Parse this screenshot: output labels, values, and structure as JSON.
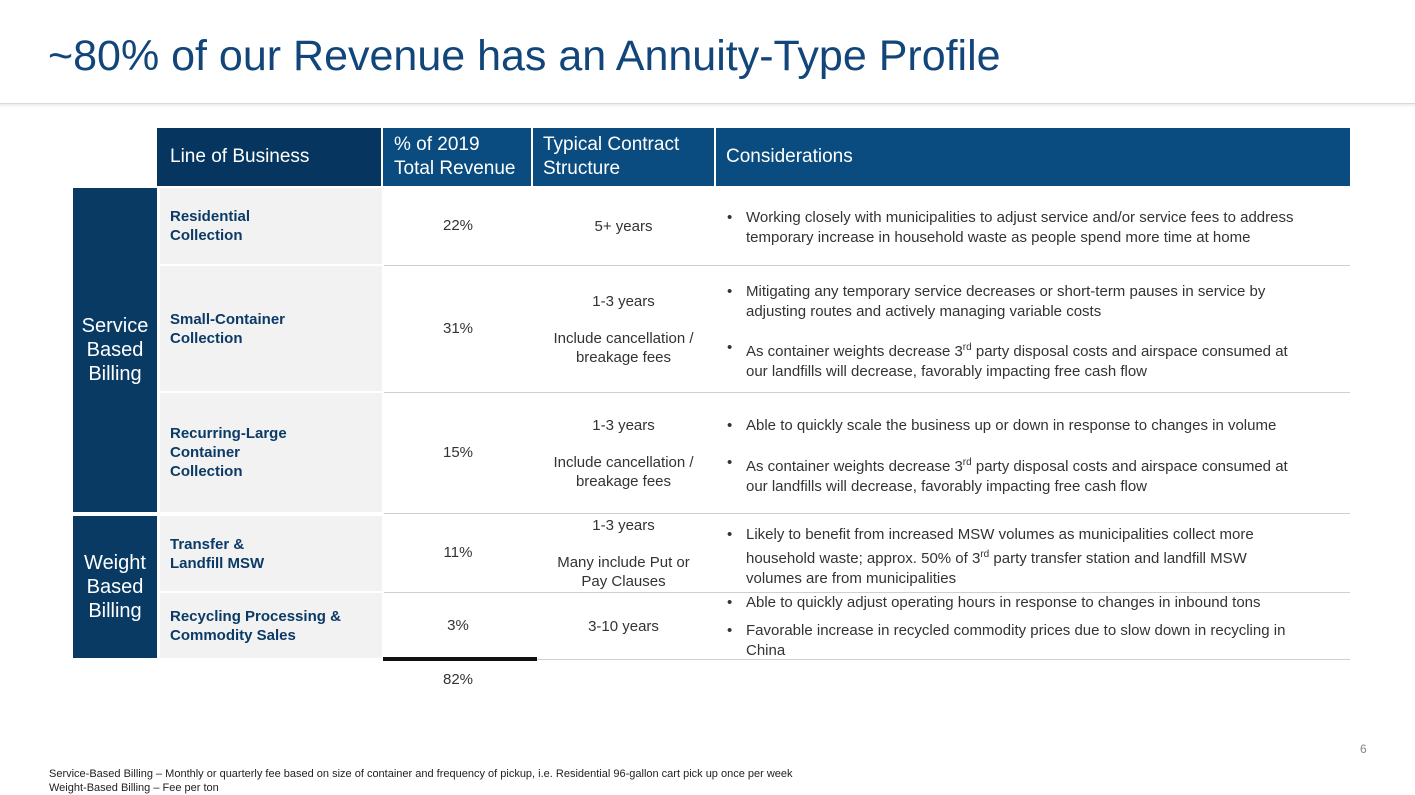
{
  "title": "~80% of our Revenue has an Annuity-Type Profile",
  "headers": {
    "lob": "Line of Business",
    "pct_line1": "% of 2019",
    "pct_line2": "Total Revenue",
    "contract_line1": "Typical Contract",
    "contract_line2": "Structure",
    "considerations": "Considerations"
  },
  "groups": {
    "service": [
      "Service",
      "Based",
      "Billing"
    ],
    "weight": [
      "Weight",
      "Based",
      "Billing"
    ]
  },
  "rows": [
    {
      "lob": [
        "Residential",
        "Collection"
      ],
      "pct": "22%",
      "contract": [
        "5+ years"
      ],
      "bullets": [
        [
          "Working closely with municipalities to adjust service and/or service fees to address",
          "temporary increase in household waste as people spend more time at home"
        ]
      ]
    },
    {
      "lob": [
        "Small-Container",
        "Collection"
      ],
      "pct": "31%",
      "contract": [
        "1-3 years",
        "Include cancellation /",
        "breakage fees"
      ],
      "bullets": [
        [
          "Mitigating any temporary service decreases or short-term pauses in service by",
          "adjusting routes and actively managing variable costs"
        ],
        [
          "As container weights decrease 3",
          "rd",
          " party disposal costs and airspace consumed at",
          "our landfills will decrease, favorably impacting free cash flow"
        ]
      ]
    },
    {
      "lob": [
        "Recurring-Large",
        "Container",
        "Collection"
      ],
      "pct": "15%",
      "contract": [
        "1-3 years",
        "Include cancellation /",
        "breakage fees"
      ],
      "bullets": [
        [
          "Able to quickly scale the business up or down in response to changes in volume"
        ],
        [
          "As container weights decrease 3",
          "rd",
          " party disposal costs and airspace consumed at",
          "our landfills will decrease, favorably impacting free cash flow"
        ]
      ]
    },
    {
      "lob": [
        "Transfer &",
        "Landfill MSW"
      ],
      "pct": "11%",
      "contract": [
        "1-3 years",
        "Many include Put or",
        "Pay Clauses"
      ],
      "bullets": [
        [
          "Likely to benefit from increased MSW volumes as municipalities collect more",
          "household waste; approx. 50% of 3",
          "rd",
          " party transfer station and landfill MSW",
          "volumes are from municipalities"
        ]
      ]
    },
    {
      "lob": [
        "Recycling Processing &",
        "Commodity Sales"
      ],
      "pct": "3%",
      "contract": [
        "3-10 years"
      ],
      "bullets": [
        [
          "Able to quickly adjust operating hours in response to changes in inbound tons"
        ],
        [
          "Favorable increase in recycled commodity prices due to slow down in recycling in",
          "China"
        ]
      ]
    }
  ],
  "total": "82%",
  "page_number": "6",
  "footnotes": [
    "Service-Based Billing – Monthly or quarterly fee based on size of container and frequency of pickup, i.e. Residential 96-gallon cart pick up once per week",
    "Weight-Based Billing – Fee per ton"
  ]
}
